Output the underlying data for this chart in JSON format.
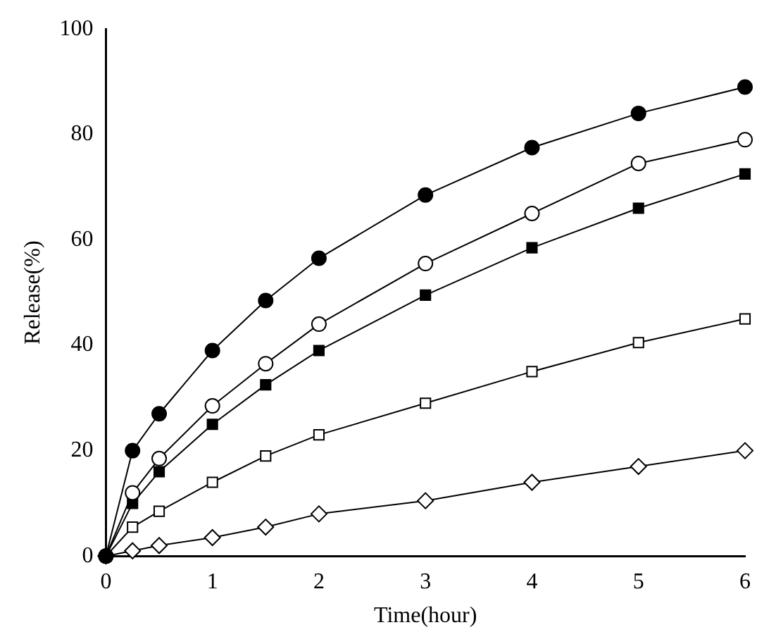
{
  "chart_data": {
    "type": "line",
    "xlabel": "Time(hour)",
    "ylabel": "Release(%)",
    "x": [
      0,
      0.25,
      0.5,
      1,
      1.5,
      2,
      3,
      4,
      5,
      6
    ],
    "xlim": [
      0,
      6
    ],
    "xticks": [
      0,
      1,
      2,
      3,
      4,
      5,
      6
    ],
    "ylim": [
      0,
      100
    ],
    "yticks": [
      0,
      20,
      40,
      60,
      80,
      100
    ],
    "grid": false,
    "legend": false,
    "line_style": "solid",
    "series": [
      {
        "color": "#000000",
        "marker": "circle",
        "values": [
          0,
          20,
          27,
          39,
          48.5,
          56.5,
          68.5,
          77.5,
          84,
          89
        ]
      },
      {
        "color": "#000000",
        "marker": "circle",
        "values": [
          0,
          12,
          18.5,
          28.5,
          36.5,
          44,
          55.5,
          65,
          74.5,
          79
        ]
      },
      {
        "color": "#000000",
        "marker": "square",
        "values": [
          0,
          10,
          16,
          25,
          32.5,
          39,
          49.5,
          58.5,
          66,
          72.5
        ]
      },
      {
        "color": "#000000",
        "marker": "square",
        "values": [
          0,
          5.5,
          8.5,
          14,
          19,
          23,
          29,
          35,
          40.5,
          45
        ]
      },
      {
        "color": "#000000",
        "marker": "diamond",
        "values": [
          0,
          1,
          2,
          3.5,
          5.5,
          8,
          10.5,
          14,
          17,
          20
        ]
      }
    ]
  }
}
